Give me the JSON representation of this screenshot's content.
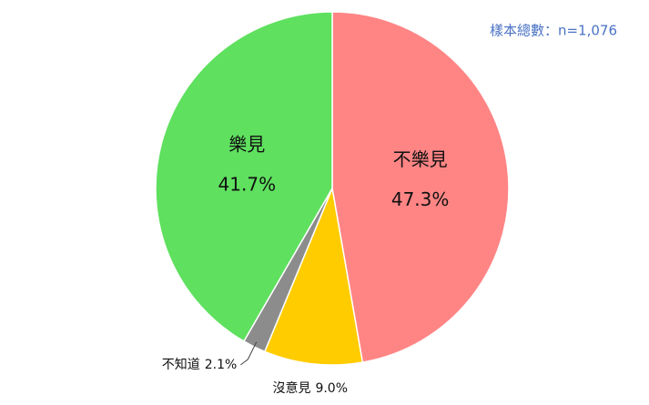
{
  "chart_data": {
    "type": "pie",
    "annotation": "樣本總數：n=1,076",
    "categories": [
      "不樂見",
      "沒意見",
      "不知道",
      "樂見"
    ],
    "values": [
      47.3,
      9.0,
      2.1,
      41.7
    ],
    "value_labels": [
      "47.3%",
      "9.0%",
      "2.1%",
      "41.7%"
    ],
    "colors": [
      "#ff8585",
      "#ffcc00",
      "#8c8c8c",
      "#5fe05f"
    ]
  }
}
